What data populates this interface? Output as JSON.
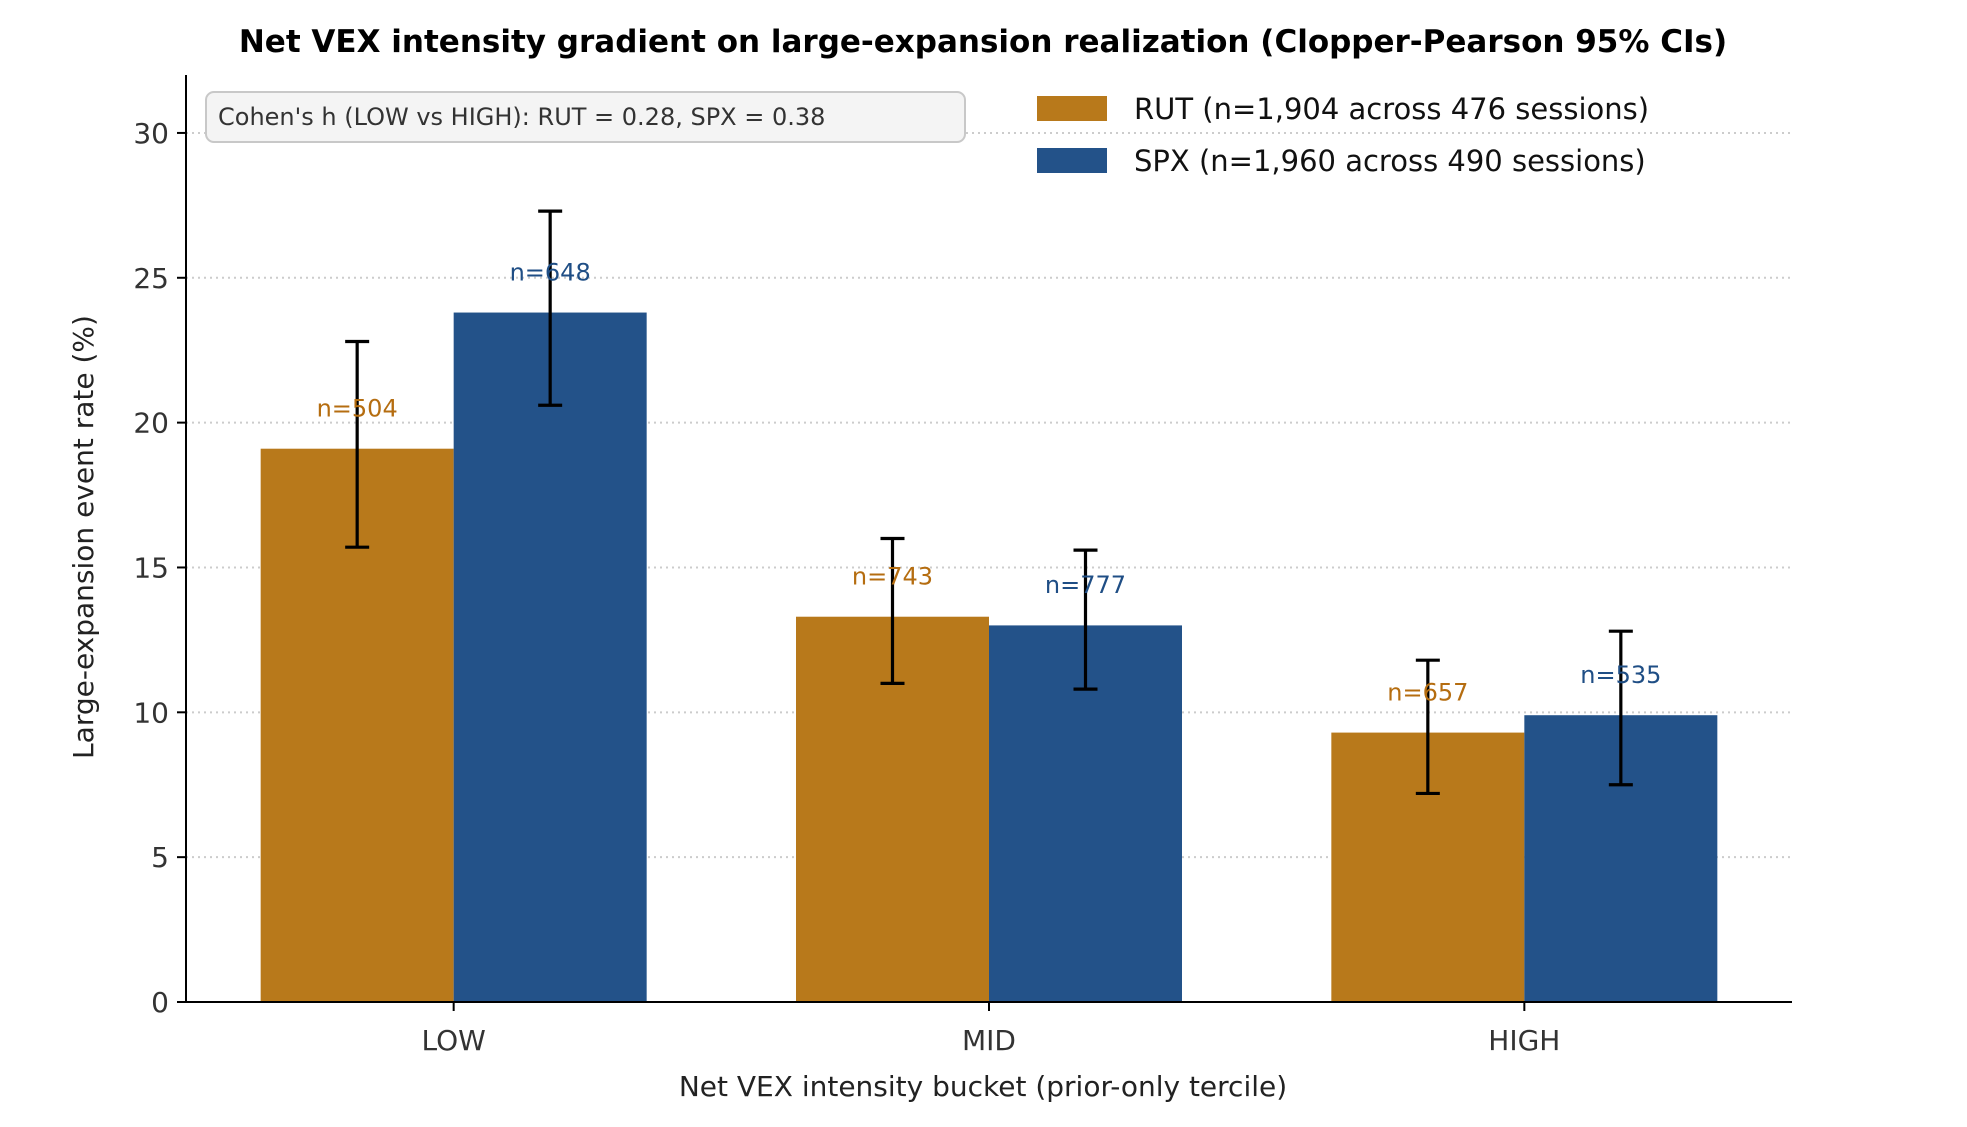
{
  "colors": {
    "RUT": "#b8791b",
    "SPX": "#235289",
    "RUT_label": "#b56d10",
    "SPX_label": "#1f4e85",
    "grid": "#cccccc",
    "error_bar": "#000000"
  },
  "chart_data": {
    "type": "bar",
    "title": "Net VEX intensity gradient on large-expansion realization (Clopper-Pearson 95% CIs)",
    "xlabel": "Net VEX intensity bucket (prior-only tercile)",
    "ylabel": "Large-expansion event rate (%)",
    "categories": [
      "LOW",
      "MID",
      "HIGH"
    ],
    "ylim": [
      0,
      32
    ],
    "yticks": [
      0,
      5,
      10,
      15,
      20,
      25,
      30
    ],
    "grid": "horizontal dotted",
    "legend_position": "top-right",
    "series": [
      {
        "key": "RUT",
        "name": "RUT (n=1,904 across 476 sessions)",
        "values": [
          19.1,
          13.3,
          9.3
        ],
        "ci_low": [
          15.7,
          11.0,
          7.2
        ],
        "ci_high": [
          22.8,
          16.0,
          11.8
        ],
        "n_labels": [
          "n=504",
          "n=743",
          "n=657"
        ]
      },
      {
        "key": "SPX",
        "name": "SPX (n=1,960 across 490 sessions)",
        "values": [
          23.8,
          13.0,
          9.9
        ],
        "ci_low": [
          20.6,
          10.8,
          7.5
        ],
        "ci_high": [
          27.3,
          15.6,
          12.8
        ],
        "n_labels": [
          "n=648",
          "n=777",
          "n=535"
        ]
      }
    ],
    "annotation": "Cohen's h (LOW vs HIGH): RUT = 0.28, SPX = 0.38"
  }
}
